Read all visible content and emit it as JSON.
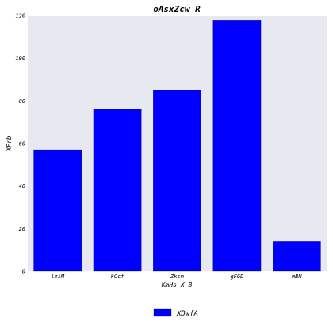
{
  "chart_data": {
    "type": "bar",
    "title": "oAsxZcw R",
    "xlabel": "KmHs X B",
    "ylabel": "XFrb",
    "categories": [
      "lziM",
      "kOcf",
      "Zksm",
      "gFGD",
      "mBN"
    ],
    "series": [
      {
        "name": "XDwfA",
        "values": [
          57,
          76,
          85,
          118,
          14
        ],
        "color": "#0000ff"
      }
    ],
    "ylim": [
      0,
      120
    ],
    "yticks": [
      0,
      20,
      40,
      60,
      80,
      100,
      120
    ],
    "grid": false,
    "legend_position": "bottom-center",
    "plot_background": "#e8e8f0"
  }
}
